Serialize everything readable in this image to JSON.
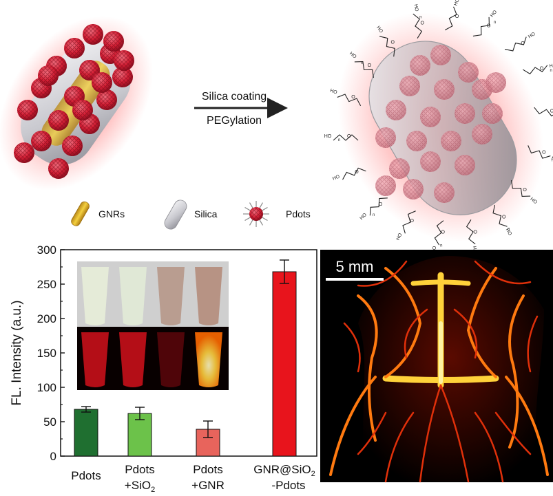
{
  "schematic": {
    "arrow_label_top": "Silica coating",
    "arrow_label_bottom": "PEGylation",
    "legend": {
      "gnr": "GNRs",
      "silica": "Silica",
      "pdots": "Pdots"
    },
    "peg_hydroxyl": "HO",
    "peg_oxygen": "O",
    "peg_repeat": "n"
  },
  "scale_bar": "5 mm",
  "colors": {
    "bar_pdots": "#1f6f30",
    "bar_pdots_sio2": "#6cc24a",
    "bar_pdots_gnr": "#e8645c",
    "bar_gnr_sio2_pdots": "#e8141c",
    "pdot_red": "#d9253a"
  },
  "chart_data": {
    "type": "bar",
    "ylabel": "FL. Intensity (a.u.)",
    "ylim": [
      0,
      300
    ],
    "yticks": [
      "0",
      "50",
      "100",
      "150",
      "200",
      "250",
      "300"
    ],
    "categories": [
      {
        "line1": "Pdots",
        "line2": ""
      },
      {
        "line1": "Pdots",
        "line2": "+SiO",
        "sub": "2"
      },
      {
        "line1": "Pdots",
        "line2": "+GNR"
      },
      {
        "line1": "GNR@SiO",
        "sub": "2",
        "line2": "-Pdots"
      }
    ],
    "values": [
      68,
      62,
      39,
      268
    ],
    "errors": [
      4,
      9,
      12,
      17
    ]
  }
}
